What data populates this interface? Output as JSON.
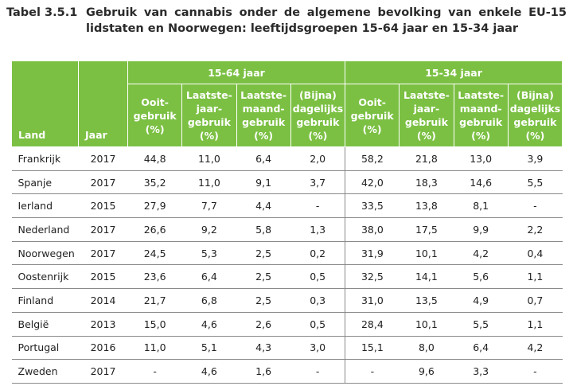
{
  "caption": {
    "number": "Tabel 3.5.1",
    "title": "Gebruik van cannabis onder de algemene bevolking van enkele EU-15 lidstaten en Noorwegen: leeftijdsgroepen 15-64 jaar en 15-34 jaar"
  },
  "header": {
    "land": "Land",
    "jaar": "Jaar",
    "group1": "15-64 jaar",
    "group2": "15-34 jaar",
    "sub": [
      "Ooit-\ngebruik\n(%)",
      "Laatste-\njaar-\ngebruik\n(%)",
      "Laatste-\nmaand-\ngebruik\n(%)",
      "(Bijna)\ndagelijks\ngebruik\n(%)"
    ]
  },
  "colors": {
    "header_bg": "#7bc043",
    "header_text": "#ffffff",
    "rule": "#8a8a8a"
  },
  "rows": [
    {
      "land": "Frankrijk",
      "jaar": "2017",
      "v": [
        "44,8",
        "11,0",
        "6,4",
        "2,0",
        "58,2",
        "21,8",
        "13,0",
        "3,9"
      ]
    },
    {
      "land": "Spanje",
      "jaar": "2017",
      "v": [
        "35,2",
        "11,0",
        "9,1",
        "3,7",
        "42,0",
        "18,3",
        "14,6",
        "5,5"
      ]
    },
    {
      "land": "Ierland",
      "jaar": "2015",
      "v": [
        "27,9",
        "7,7",
        "4,4",
        "-",
        "33,5",
        "13,8",
        "8,1",
        "-"
      ]
    },
    {
      "land": "Nederland",
      "jaar": "2017",
      "v": [
        "26,6",
        "9,2",
        "5,8",
        "1,3",
        "38,0",
        "17,5",
        "9,9",
        "2,2"
      ]
    },
    {
      "land": "Noorwegen",
      "jaar": "2017",
      "v": [
        "24,5",
        "5,3",
        "2,5",
        "0,2",
        "31,9",
        "10,1",
        "4,2",
        "0,4"
      ]
    },
    {
      "land": "Oostenrijk",
      "jaar": "2015",
      "v": [
        "23,6",
        "6,4",
        "2,5",
        "0,5",
        "32,5",
        "14,1",
        "5,6",
        "1,1"
      ]
    },
    {
      "land": "Finland",
      "jaar": "2014",
      "v": [
        "21,7",
        "6,8",
        "2,5",
        "0,3",
        "31,0",
        "13,5",
        "4,9",
        "0,7"
      ]
    },
    {
      "land": "België",
      "jaar": "2013",
      "v": [
        "15,0",
        "4,6",
        "2,6",
        "0,5",
        "28,4",
        "10,1",
        "5,5",
        "1,1"
      ]
    },
    {
      "land": "Portugal",
      "jaar": "2016",
      "v": [
        "11,0",
        "5,1",
        "4,3",
        "3,0",
        "15,1",
        "8,0",
        "6,4",
        "4,2"
      ]
    },
    {
      "land": "Zweden",
      "jaar": "2017",
      "v": [
        "-",
        "4,6",
        "1,6",
        "-",
        "-",
        "9,6",
        "3,3",
        "-"
      ]
    }
  ]
}
